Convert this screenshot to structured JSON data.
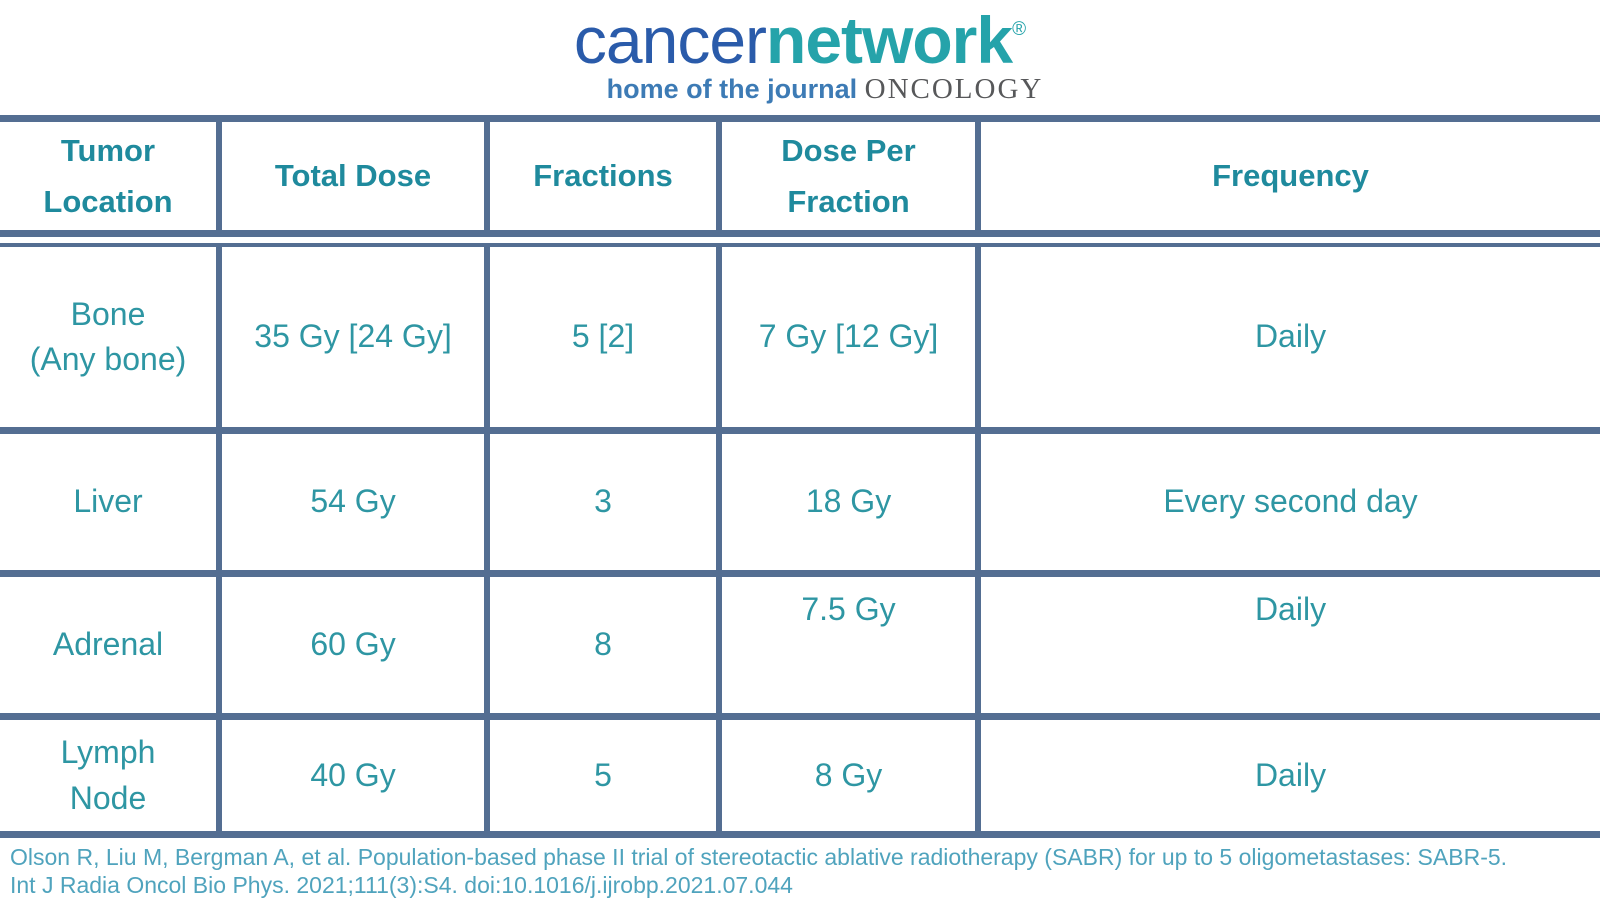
{
  "brand": {
    "logo_part1": "cancer",
    "logo_part2": "network",
    "registered_mark": "®",
    "tagline_prefix": "home of the journal ",
    "tagline_journal": "ONCOLOGY"
  },
  "chart_data": {
    "type": "table",
    "title": "",
    "columns": [
      "Tumor\nLocation",
      "Total Dose",
      "Fractions",
      "Dose Per\nFraction",
      "Frequency"
    ],
    "rows": [
      [
        "Bone\n(Any bone)",
        "35 Gy [24 Gy]",
        "5 [2]",
        "7 Gy [12 Gy]",
        "Daily"
      ],
      [
        "Liver",
        "54 Gy",
        "3",
        "18 Gy",
        "Every second day"
      ],
      [
        "Adrenal",
        "60 Gy",
        "8",
        "7.5 Gy",
        "Daily"
      ],
      [
        "Lymph\nNode",
        "40 Gy",
        "5",
        "8 Gy",
        "Daily"
      ]
    ]
  },
  "citation": {
    "line1": "Olson R, Liu M, Bergman A, et al. Population-based phase II trial of stereotactic ablative radiotherapy (SABR) for up to 5 oligometastases: SABR-5.",
    "line2": "Int J Radia Oncol Bio Phys. 2021;111(3):S4. doi:10.1016/j.ijrobp.2021.07.044"
  },
  "colors": {
    "border_slate": "#546e92",
    "header_teal": "#1f8a9d",
    "data_teal": "#2e96a3",
    "citation_blue": "#4fa3bd",
    "logo_blue": "#2a5baa",
    "logo_teal": "#25a3aa",
    "tagline_blue": "#3d7bb5",
    "oncology_gray": "#57585a"
  }
}
